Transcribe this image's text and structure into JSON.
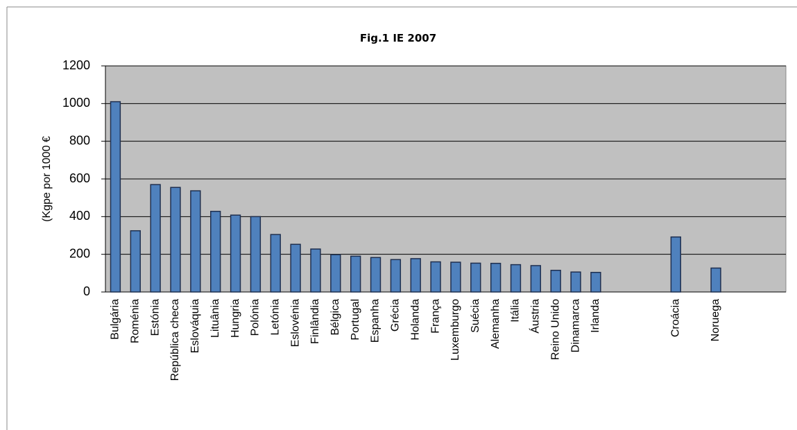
{
  "chart_data": {
    "type": "bar",
    "title": "Fig.1 IE 2007",
    "y_label": "(Kgpe por 1000 €",
    "categories": [
      "Bulgária",
      "Roménia",
      "Estónia",
      "República checa",
      "Eslováquia",
      "Lituânia",
      "Hungria",
      "Polónia",
      "Letónia",
      "Eslovénia",
      "Finlândia",
      "Bélgica",
      "Portugal",
      "Espanha",
      "Grécia",
      "Holanda",
      "França",
      "Luxemburgo",
      "Suécia",
      "Alemanha",
      "Itália",
      "Áustria",
      "Reino Unido",
      "Dinamarca",
      "Irlanda",
      null,
      null,
      null,
      "Croácia",
      null,
      "Noruega",
      null,
      null,
      null
    ],
    "values": [
      1010,
      325,
      570,
      555,
      537,
      428,
      408,
      400,
      305,
      253,
      228,
      198,
      190,
      183,
      172,
      177,
      160,
      158,
      153,
      152,
      145,
      140,
      115,
      106,
      104,
      null,
      null,
      null,
      292,
      null,
      127,
      null,
      null,
      null
    ],
    "color": "#4f81bd",
    "plot_background": "#c0c0c0",
    "ylim": [
      0,
      1200
    ],
    "yticks": [
      0,
      200,
      400,
      600,
      800,
      1000,
      1200
    ],
    "grid": true
  }
}
